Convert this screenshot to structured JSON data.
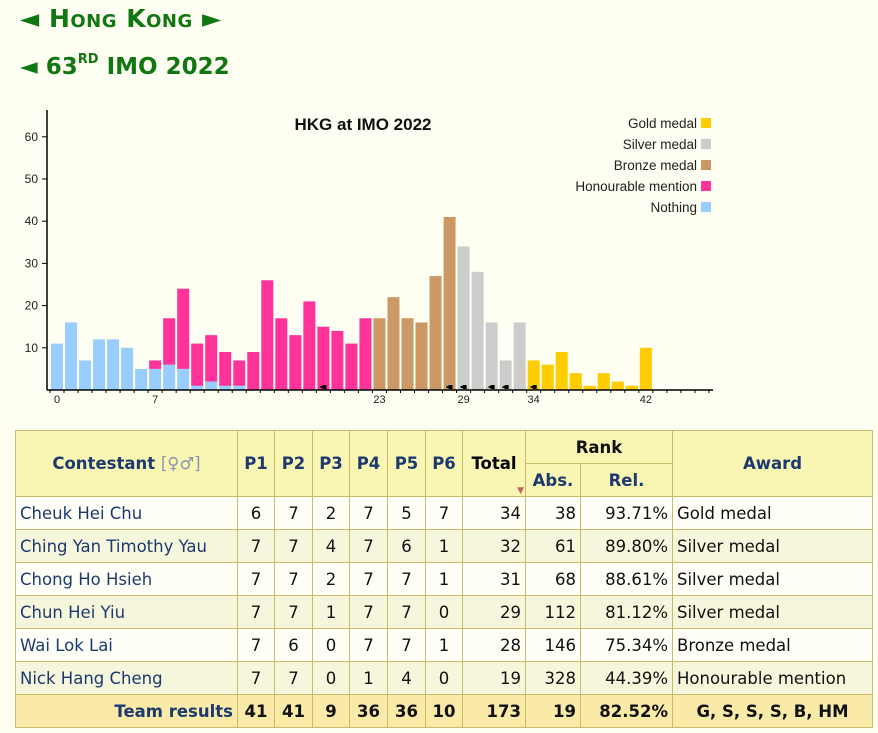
{
  "header": {
    "country": "Hong Kong",
    "prev_arrow": "◄",
    "next_arrow": "►",
    "imo_ordinal": "63",
    "imo_suffix": "RD",
    "imo_title": "IMO 2022"
  },
  "chart_data": {
    "type": "bar",
    "stacked": true,
    "title": "HKG at IMO 2022",
    "x": [
      0,
      1,
      2,
      3,
      4,
      5,
      6,
      7,
      8,
      9,
      10,
      11,
      12,
      13,
      14,
      15,
      16,
      17,
      18,
      19,
      20,
      21,
      22,
      23,
      24,
      25,
      26,
      27,
      28,
      29,
      30,
      31,
      32,
      33,
      34,
      35,
      36,
      37,
      38,
      39,
      40,
      41,
      42
    ],
    "xticks": [
      0,
      7,
      23,
      29,
      34,
      42
    ],
    "yticks": [
      10,
      20,
      30,
      40,
      50,
      60
    ],
    "ylim": [
      0,
      65
    ],
    "legend_placement": "top-right",
    "series": [
      {
        "name": "Nothing",
        "color": "#99ccff",
        "values": [
          11,
          16,
          7,
          12,
          12,
          10,
          5,
          5,
          6,
          5,
          1,
          2,
          1,
          1,
          0,
          0,
          0,
          0,
          0,
          0,
          0,
          0,
          0,
          0,
          0,
          0,
          0,
          0,
          0,
          0,
          0,
          0,
          0,
          0,
          0,
          0,
          0,
          0,
          0,
          0,
          0,
          0,
          0
        ]
      },
      {
        "name": "Honourable mention",
        "color": "#ff3399",
        "values": [
          0,
          0,
          0,
          0,
          0,
          0,
          0,
          2,
          11,
          19,
          10,
          11,
          8,
          6,
          9,
          26,
          17,
          13,
          21,
          15,
          14,
          11,
          17,
          0,
          0,
          0,
          0,
          0,
          0,
          0,
          0,
          0,
          0,
          0,
          0,
          0,
          0,
          0,
          0,
          0,
          0,
          0,
          0
        ]
      },
      {
        "name": "Bronze medal",
        "color": "#cc9966",
        "values": [
          0,
          0,
          0,
          0,
          0,
          0,
          0,
          0,
          0,
          0,
          0,
          0,
          0,
          0,
          0,
          0,
          0,
          0,
          0,
          0,
          0,
          0,
          0,
          17,
          22,
          17,
          16,
          27,
          41,
          0,
          0,
          0,
          0,
          0,
          0,
          0,
          0,
          0,
          0,
          0,
          0,
          0,
          0
        ]
      },
      {
        "name": "Silver medal",
        "color": "#cccccc",
        "values": [
          0,
          0,
          0,
          0,
          0,
          0,
          0,
          0,
          0,
          0,
          0,
          0,
          0,
          0,
          0,
          0,
          0,
          0,
          0,
          0,
          0,
          0,
          0,
          0,
          0,
          0,
          0,
          0,
          0,
          34,
          28,
          16,
          7,
          16,
          0,
          0,
          0,
          0,
          0,
          0,
          0,
          0,
          0
        ]
      },
      {
        "name": "Gold medal",
        "color": "#ffcc00",
        "values": [
          0,
          0,
          0,
          0,
          0,
          0,
          0,
          0,
          0,
          0,
          0,
          0,
          0,
          0,
          0,
          0,
          0,
          0,
          0,
          0,
          0,
          0,
          0,
          0,
          0,
          0,
          0,
          0,
          0,
          0,
          0,
          0,
          0,
          0,
          7,
          6,
          9,
          4,
          1,
          4,
          2,
          1,
          10
        ]
      }
    ],
    "legend_order": [
      "Gold medal",
      "Silver medal",
      "Bronze medal",
      "Honourable mention",
      "Nothing"
    ],
    "team_markers": [
      19,
      28,
      29,
      31,
      32,
      34
    ]
  },
  "table": {
    "headers": {
      "contestant": "Contestant",
      "gender": "[♀♂]",
      "problems": [
        "P1",
        "P2",
        "P3",
        "P4",
        "P5",
        "P6"
      ],
      "total": "Total",
      "sort_indicator": "▼",
      "rank": "Rank",
      "abs": "Abs.",
      "rel": "Rel.",
      "award": "Award"
    },
    "rows": [
      {
        "name": "Cheuk Hei Chu",
        "p": [
          "6",
          "7",
          "2",
          "7",
          "5",
          "7"
        ],
        "total": "34",
        "abs": "38",
        "rel": "93.71%",
        "award": "Gold medal"
      },
      {
        "name": "Ching Yan Timothy Yau",
        "p": [
          "7",
          "7",
          "4",
          "7",
          "6",
          "1"
        ],
        "total": "32",
        "abs": "61",
        "rel": "89.80%",
        "award": "Silver medal"
      },
      {
        "name": "Chong Ho Hsieh",
        "p": [
          "7",
          "7",
          "2",
          "7",
          "7",
          "1"
        ],
        "total": "31",
        "abs": "68",
        "rel": "88.61%",
        "award": "Silver medal"
      },
      {
        "name": "Chun Hei Yiu",
        "p": [
          "7",
          "7",
          "1",
          "7",
          "7",
          "0"
        ],
        "total": "29",
        "abs": "112",
        "rel": "81.12%",
        "award": "Silver medal"
      },
      {
        "name": "Wai Lok Lai",
        "p": [
          "7",
          "6",
          "0",
          "7",
          "7",
          "1"
        ],
        "total": "28",
        "abs": "146",
        "rel": "75.34%",
        "award": "Bronze medal"
      },
      {
        "name": "Nick Hang Cheng",
        "p": [
          "7",
          "7",
          "0",
          "1",
          "4",
          "0"
        ],
        "total": "19",
        "abs": "328",
        "rel": "44.39%",
        "award": "Honourable mention"
      }
    ],
    "team": {
      "label": "Team results",
      "p": [
        "41",
        "41",
        "9",
        "36",
        "36",
        "10"
      ],
      "total": "173",
      "abs": "19",
      "rel": "82.52%",
      "award": "G, S, S, S, B, HM"
    }
  }
}
